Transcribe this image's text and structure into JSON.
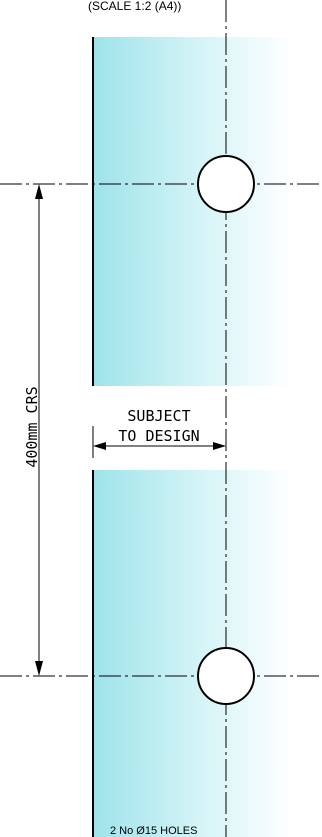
{
  "header": {
    "scale_note": "(SCALE 1:2 (A4))"
  },
  "dimensions": {
    "centres_label": "400mm CRS",
    "subject_line1": "SUBJECT",
    "subject_line2": "TO DESIGN"
  },
  "footer": {
    "holes_note": "2 No  Ø15 HOLES"
  },
  "colors": {
    "glass_edge": "#9ee3ea",
    "glass_fade": "#ffffff",
    "line": "#000000"
  }
}
